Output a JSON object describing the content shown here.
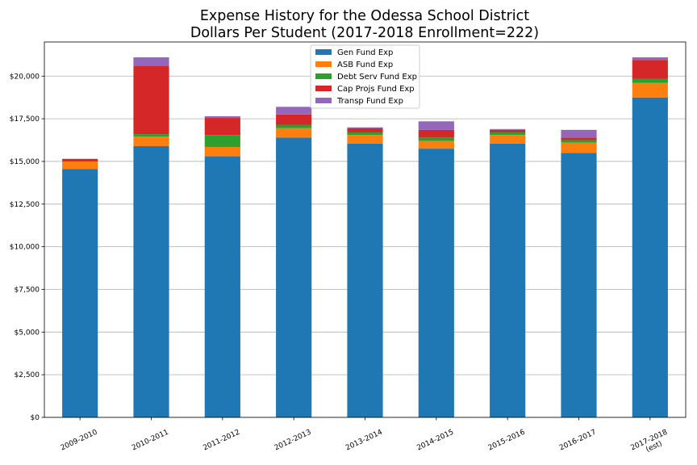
{
  "chart_data": {
    "type": "bar",
    "stacked": true,
    "title": [
      "Expense History for the Odessa School District",
      "Dollars Per Student (2017-2018 Enrollment=222)"
    ],
    "xlabel": "",
    "ylabel": "",
    "categories": [
      "2009-2010",
      "2010-2011",
      "2011-2012",
      "2012-2013",
      "2013-2014",
      "2014-2015",
      "2015-2016",
      "2016-2017",
      "2017-2018\n(est)"
    ],
    "ylim": [
      0,
      22000
    ],
    "yticks": [
      0,
      2500,
      5000,
      7500,
      10000,
      12500,
      15000,
      17500,
      20000
    ],
    "ytick_labels": [
      "$0",
      "$2,500",
      "$5,000",
      "$7,500",
      "$10,000",
      "$12,500",
      "$15,000",
      "$17,500",
      "$20,000"
    ],
    "grid": "horizontal",
    "legend_position": "top-center",
    "series": [
      {
        "name": "Gen Fund Exp",
        "color": "#1f77b4",
        "values": [
          14550,
          15900,
          15300,
          16400,
          16050,
          15750,
          16050,
          15500,
          18750
        ]
      },
      {
        "name": "ASB Fund Exp",
        "color": "#ff7f0e",
        "values": [
          450,
          550,
          550,
          550,
          500,
          450,
          500,
          600,
          850
        ]
      },
      {
        "name": "Debt Serv Fund Exp",
        "color": "#2ca02c",
        "values": [
          0,
          150,
          700,
          200,
          150,
          200,
          150,
          150,
          250
        ]
      },
      {
        "name": "Cap Projs Fund Exp",
        "color": "#d62728",
        "values": [
          150,
          4000,
          1000,
          600,
          250,
          450,
          150,
          150,
          1100
        ]
      },
      {
        "name": "Transp Fund Exp",
        "color": "#9467bd",
        "values": [
          0,
          500,
          100,
          450,
          50,
          500,
          50,
          450,
          150
        ]
      }
    ]
  }
}
